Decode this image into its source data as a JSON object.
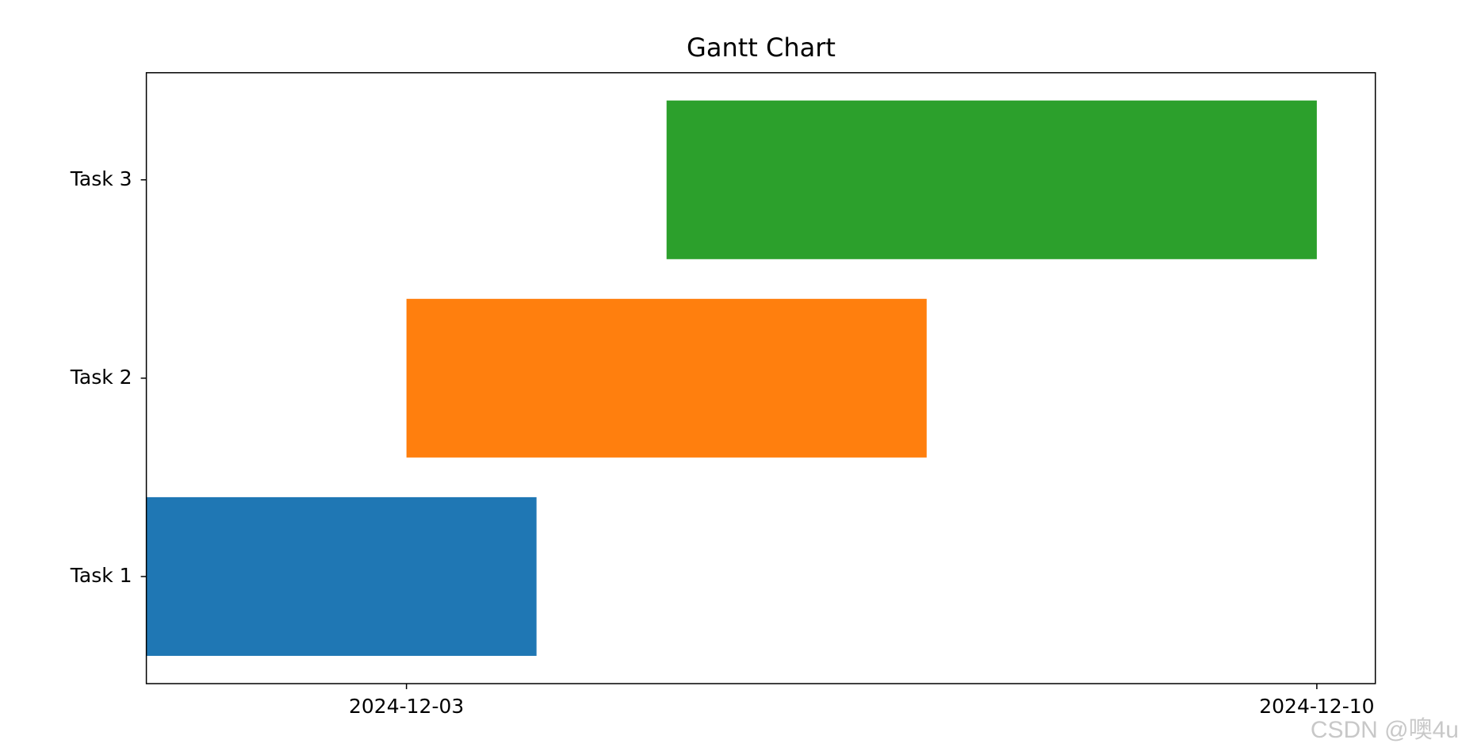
{
  "chart_data": {
    "type": "gantt",
    "title": "Gantt Chart",
    "categories": [
      "Task 1",
      "Task 2",
      "Task 3"
    ],
    "starts": [
      "2024-12-01",
      "2024-12-03",
      "2024-12-05"
    ],
    "ends": [
      "2024-12-04",
      "2024-12-07",
      "2024-12-10"
    ],
    "colors": [
      "#1f77b4",
      "#ff7f0e",
      "#2ca02c"
    ],
    "xlim": [
      "2024-12-01T00:00:00Z",
      "2024-12-10T10:48:00Z"
    ],
    "xticks": [
      "2024-12-03",
      "2024-12-10"
    ],
    "ylim": [
      -0.54,
      2.54
    ],
    "watermark": "CSDN @噢4u"
  }
}
